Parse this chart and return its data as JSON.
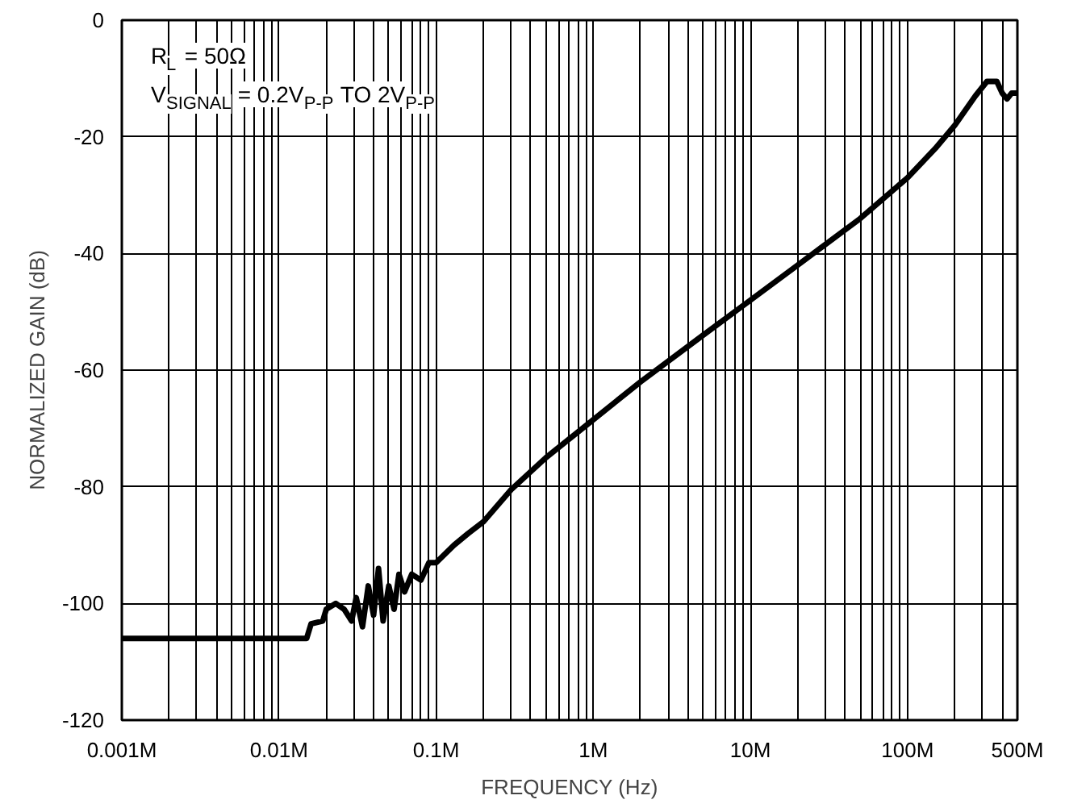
{
  "chart_data": {
    "type": "line",
    "xlabel": "FREQUENCY (Hz)",
    "ylabel": "NORMALIZED GAIN (dB)",
    "annotations": [
      "R$_{L}$ = 50Ω",
      "V$_{SIGNAL}$ = 0.2V$_{P-P}$ TO 2V$_{P-P}$"
    ],
    "log": "x",
    "grid": true,
    "marker": "none",
    "line_style": "solid",
    "xlim": [
      1000,
      500000000
    ],
    "ylim": [
      -120,
      0
    ],
    "xticks": [
      {
        "value": 1000,
        "label": "0.001M"
      },
      {
        "value": 2000,
        "label": null
      },
      {
        "value": 3000,
        "label": null
      },
      {
        "value": 4000,
        "label": null
      },
      {
        "value": 5000,
        "label": null
      },
      {
        "value": 6000,
        "label": null
      },
      {
        "value": 7000,
        "label": null
      },
      {
        "value": 8000,
        "label": null
      },
      {
        "value": 9000,
        "label": null
      },
      {
        "value": 10000,
        "label": "0.01M"
      },
      {
        "value": 20000,
        "label": null
      },
      {
        "value": 30000,
        "label": null
      },
      {
        "value": 40000,
        "label": null
      },
      {
        "value": 50000,
        "label": null
      },
      {
        "value": 60000,
        "label": null
      },
      {
        "value": 70000,
        "label": null
      },
      {
        "value": 80000,
        "label": null
      },
      {
        "value": 90000,
        "label": null
      },
      {
        "value": 100000,
        "label": "0.1M"
      },
      {
        "value": 200000,
        "label": null
      },
      {
        "value": 300000,
        "label": null
      },
      {
        "value": 400000,
        "label": null
      },
      {
        "value": 500000,
        "label": null
      },
      {
        "value": 600000,
        "label": null
      },
      {
        "value": 700000,
        "label": null
      },
      {
        "value": 800000,
        "label": null
      },
      {
        "value": 900000,
        "label": null
      },
      {
        "value": 1000000,
        "label": "1M"
      },
      {
        "value": 2000000,
        "label": null
      },
      {
        "value": 3000000,
        "label": null
      },
      {
        "value": 4000000,
        "label": null
      },
      {
        "value": 5000000,
        "label": null
      },
      {
        "value": 6000000,
        "label": null
      },
      {
        "value": 7000000,
        "label": null
      },
      {
        "value": 8000000,
        "label": null
      },
      {
        "value": 9000000,
        "label": null
      },
      {
        "value": 10000000,
        "label": "10M"
      },
      {
        "value": 20000000,
        "label": null
      },
      {
        "value": 30000000,
        "label": null
      },
      {
        "value": 40000000,
        "label": null
      },
      {
        "value": 50000000,
        "label": null
      },
      {
        "value": 60000000,
        "label": null
      },
      {
        "value": 70000000,
        "label": null
      },
      {
        "value": 80000000,
        "label": null
      },
      {
        "value": 90000000,
        "label": null
      },
      {
        "value": 100000000,
        "label": "100M"
      },
      {
        "value": 200000000,
        "label": null
      },
      {
        "value": 300000000,
        "label": null
      },
      {
        "value": 400000000,
        "label": null
      },
      {
        "value": 500000000,
        "label": "500M"
      }
    ],
    "yticks": [
      -120,
      -100,
      -80,
      -60,
      -40,
      -20,
      0
    ],
    "series": [
      {
        "color": "#000000",
        "x": [
          1000,
          15000,
          16000,
          19000,
          20000,
          23000,
          26000,
          29000,
          31000,
          34000,
          37000,
          40000,
          43000,
          46000,
          50000,
          54000,
          58000,
          63000,
          70000,
          80000,
          90000,
          100000,
          130000,
          160000,
          200000,
          300000,
          500000,
          1000000,
          2000000,
          5000000,
          10000000,
          20000000,
          50000000,
          100000000,
          150000000,
          200000000,
          270000000,
          320000000,
          370000000,
          400000000,
          430000000,
          460000000,
          500000000
        ],
        "values": [
          -106,
          -106,
          -103.5,
          -103,
          -101,
          -100,
          -101,
          -103,
          -99,
          -104,
          -97,
          -102,
          -94,
          -103,
          -97,
          -101,
          -95,
          -98,
          -95,
          -96,
          -93,
          -93,
          -90,
          -88,
          -86,
          -80.5,
          -75,
          -68.5,
          -62,
          -54,
          -48,
          -42,
          -34,
          -27,
          -22,
          -18,
          -13,
          -10.5,
          -10.5,
          -12.5,
          -13.5,
          -12.5,
          -12.5
        ]
      }
    ]
  }
}
